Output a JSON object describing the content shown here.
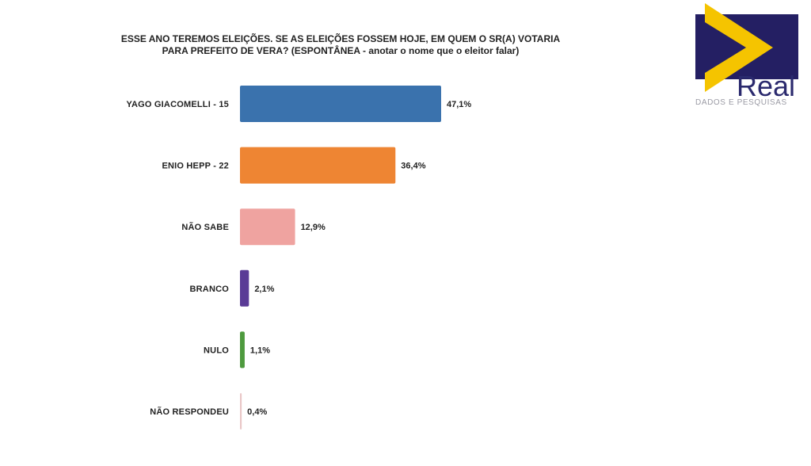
{
  "logo": {
    "brand": "Real",
    "tagline": "DADOS E PESQUISAS",
    "colors": {
      "navy": "#241f63",
      "yellow": "#f5c400",
      "text": "#2b2a6e",
      "tagline": "#9a9aa4"
    }
  },
  "chart_data": {
    "type": "bar",
    "orientation": "horizontal",
    "title_line1": "ESSE ANO TEREMOS ELEIÇÕES. SE AS ELEIÇÕES FOSSEM HOJE, EM QUEM O SR(A) VOTARIA",
    "title_line2": "PARA PREFEITO DE VERA? (ESPONTÂNEA - anotar o nome que o eleitor falar)",
    "categories": [
      "YAGO GIACOMELLI - 15",
      "ENIO HEPP - 22",
      "NÃO SABE",
      "BRANCO",
      "NULO",
      "NÃO RESPONDEU"
    ],
    "values": [
      47.1,
      36.4,
      12.9,
      2.1,
      1.1,
      0.4
    ],
    "value_labels": [
      "47,1%",
      "36,4%",
      "12,9%",
      "2,1%",
      "1,1%",
      "0,4%"
    ],
    "colors": [
      "#3a72ad",
      "#ee8533",
      "#efa3a0",
      "#5a3b96",
      "#4e9a3e",
      "#e9c7c7"
    ],
    "xlim": [
      0,
      47.1
    ],
    "grid": false,
    "legend": "none"
  }
}
